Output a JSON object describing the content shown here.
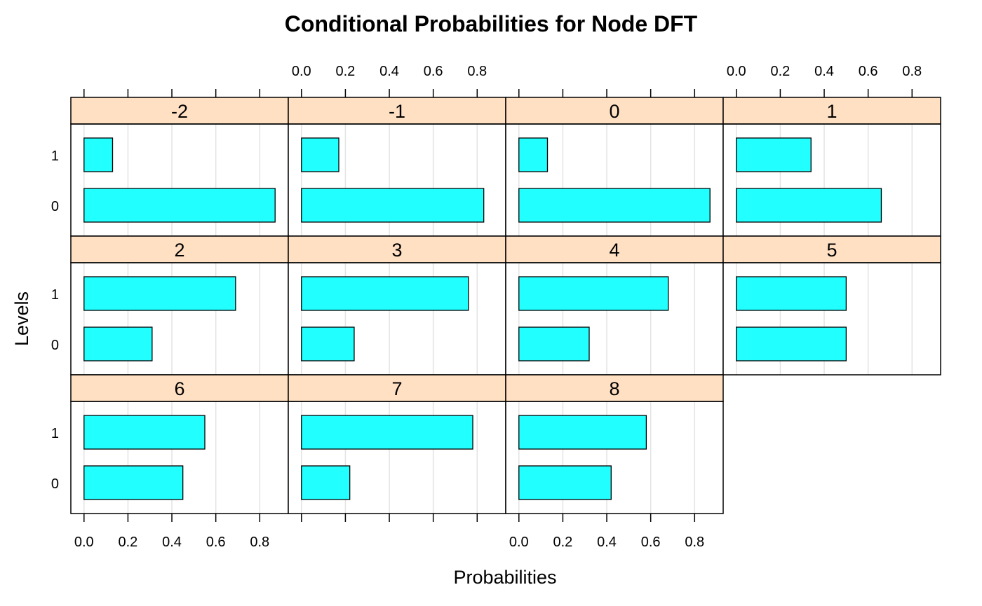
{
  "chart_data": {
    "type": "bar",
    "title": "Conditional Probabilities for Node DFT",
    "xlabel": "Probabilities",
    "ylabel": "Levels",
    "x_ticks": [
      "0.0",
      "0.2",
      "0.4",
      "0.6",
      "0.8"
    ],
    "x_tick_values": [
      0,
      0.2,
      0.4,
      0.6,
      0.8
    ],
    "xlim": [
      -0.06,
      0.93
    ],
    "levels": [
      "1",
      "0"
    ],
    "grid": true,
    "bar_color": "#22ffff",
    "strip_color": "#ffe0c3",
    "panels": [
      {
        "label": "-2",
        "values": {
          "1": 0.13,
          "0": 0.87
        }
      },
      {
        "label": "-1",
        "values": {
          "1": 0.17,
          "0": 0.83
        }
      },
      {
        "label": "0",
        "values": {
          "1": 0.13,
          "0": 0.87
        }
      },
      {
        "label": "1",
        "values": {
          "1": 0.34,
          "0": 0.66
        }
      },
      {
        "label": "2",
        "values": {
          "1": 0.69,
          "0": 0.31
        }
      },
      {
        "label": "3",
        "values": {
          "1": 0.76,
          "0": 0.24
        }
      },
      {
        "label": "4",
        "values": {
          "1": 0.68,
          "0": 0.32
        }
      },
      {
        "label": "5",
        "values": {
          "1": 0.5,
          "0": 0.5
        }
      },
      {
        "label": "6",
        "values": {
          "1": 0.55,
          "0": 0.45
        }
      },
      {
        "label": "7",
        "values": {
          "1": 0.78,
          "0": 0.22
        }
      },
      {
        "label": "8",
        "values": {
          "1": 0.58,
          "0": 0.42
        }
      }
    ]
  }
}
